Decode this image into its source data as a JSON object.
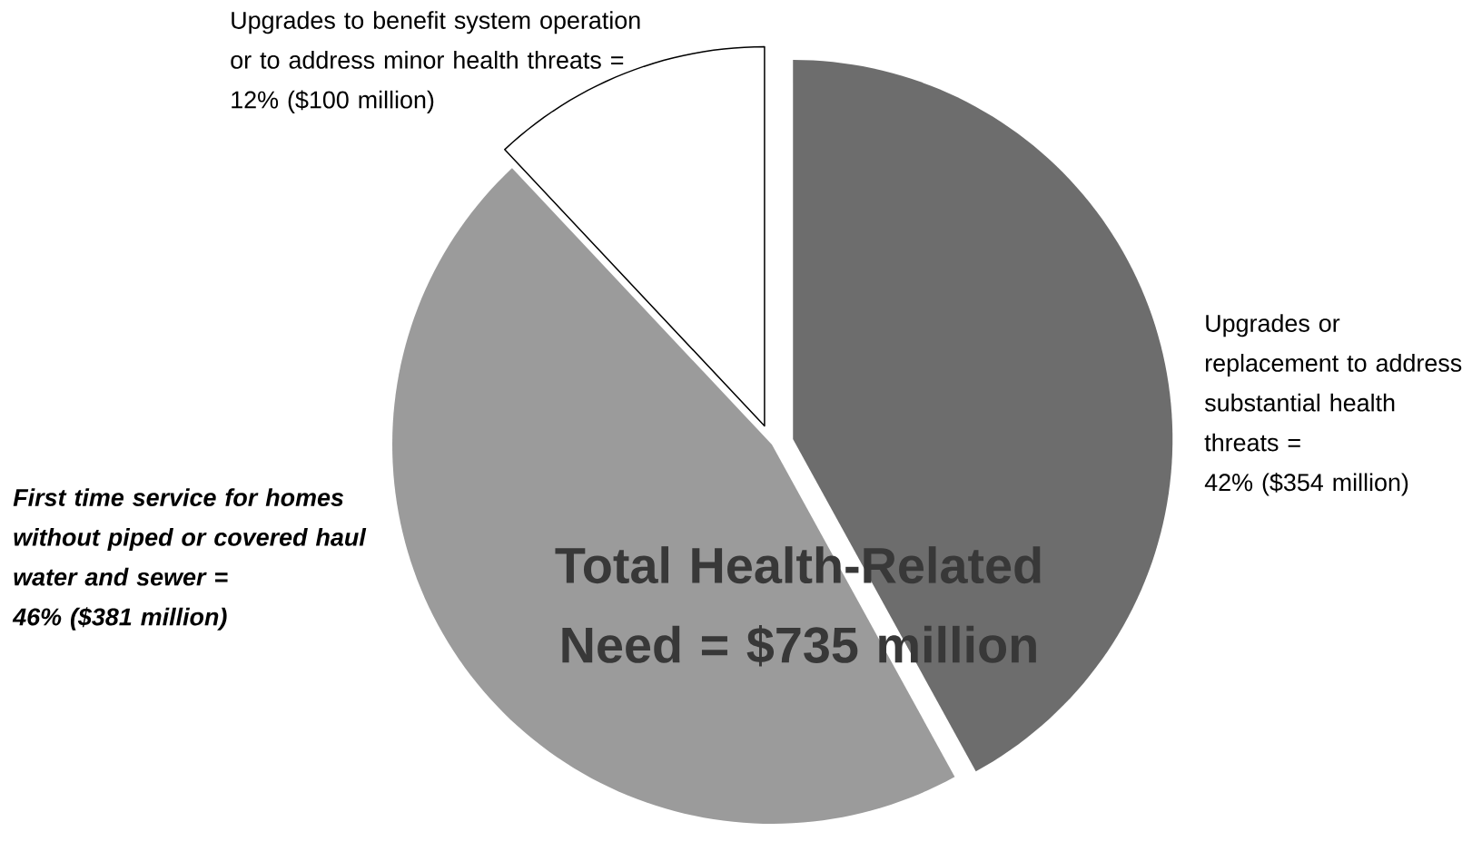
{
  "chart_data": {
    "type": "pie",
    "title": "Total Health-Related Need = $735 million",
    "categories": [
      "Upgrades or replacement to address substantial health threats =",
      "First time service for homes without piped or covered haul water and sewer =",
      "Upgrades to benefit system operation or to address minor health threats ="
    ],
    "values": [
      42,
      46,
      12
    ],
    "colors": [
      "#6d6d6d",
      "#9b9b9b",
      "#ffffff"
    ],
    "value_labels": [
      "42% ($354 million)",
      "46% ($381 million)",
      "12% ($100 million)"
    ]
  }
}
